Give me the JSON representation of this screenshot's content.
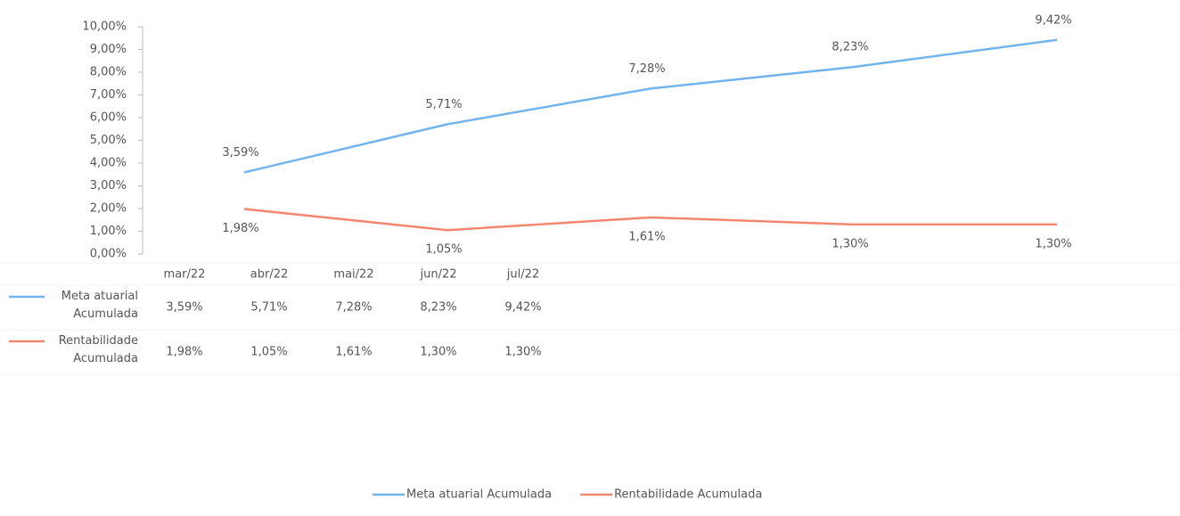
{
  "chart_data": {
    "type": "line",
    "categories": [
      "mar/22",
      "abr/22",
      "mai/22",
      "jun/22",
      "jul/22"
    ],
    "series": [
      {
        "name": "Meta atuarial Acumulada",
        "color": "#72b4ee",
        "values": [
          3.59,
          5.71,
          7.28,
          8.23,
          9.42
        ],
        "value_labels": [
          "3,59%",
          "5,71%",
          "7,28%",
          "8,23%",
          "9,42%"
        ]
      },
      {
        "name": "Rentabilidade Acumulada",
        "color": "#f3866f",
        "values": [
          1.98,
          1.05,
          1.61,
          1.3,
          1.3
        ],
        "value_labels": [
          "1,98%",
          "1,05%",
          "1,61%",
          "1,30%",
          "1,30%"
        ]
      }
    ],
    "ylim": [
      0,
      10
    ],
    "yticks": [
      {
        "value": 0,
        "label": "0,00%"
      },
      {
        "value": 1,
        "label": "1,00%"
      },
      {
        "value": 2,
        "label": "2,00%"
      },
      {
        "value": 3,
        "label": "3,00%"
      },
      {
        "value": 4,
        "label": "4,00%"
      },
      {
        "value": 5,
        "label": "5,00%"
      },
      {
        "value": 6,
        "label": "6,00%"
      },
      {
        "value": 7,
        "label": "7,00%"
      },
      {
        "value": 8,
        "label": "8,00%"
      },
      {
        "value": 9,
        "label": "9,00%"
      },
      {
        "value": 10,
        "label": "10,00%"
      }
    ],
    "legend": "bottom"
  }
}
